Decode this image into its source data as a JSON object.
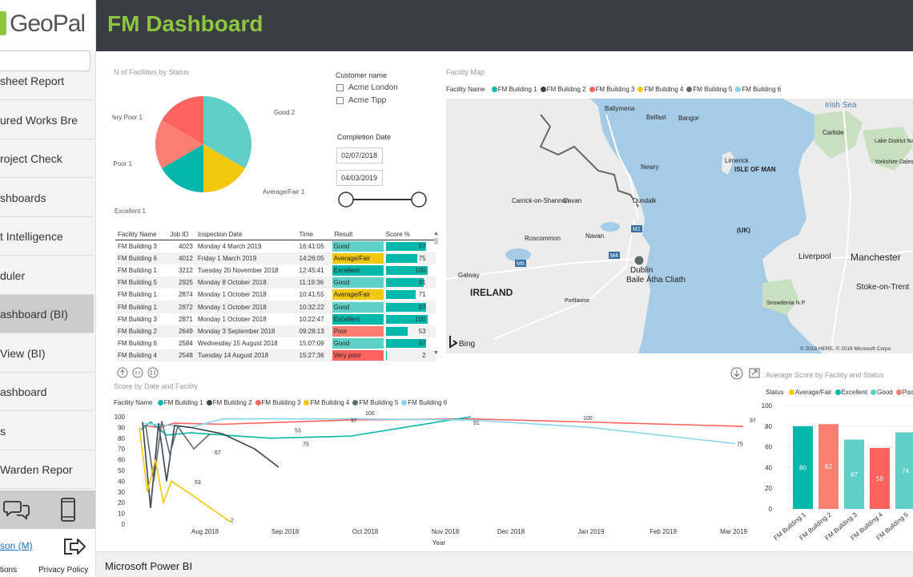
{
  "brand": {
    "name": "GeoPal",
    "accent": "#8dc63f"
  },
  "page_title": "FM Dashboard",
  "sidebar": {
    "items": [
      {
        "label": "sheet Report"
      },
      {
        "label": "ured Works Bre"
      },
      {
        "label": "roject Check"
      },
      {
        "label": "shboards"
      },
      {
        "label": "t Intelligence"
      },
      {
        "label": "duler"
      },
      {
        "label": "ashboard (BI)"
      },
      {
        "label": "View (BI)"
      },
      {
        "label": "ashboard"
      },
      {
        "label": "s"
      },
      {
        "label": "Warden Repor"
      }
    ],
    "user_link": "son (M)",
    "footer_left": "tions",
    "footer_right": "Privacy Policy"
  },
  "footer": {
    "label": "Microsoft Power BI"
  },
  "pie": {
    "title": "N of Facilities by Status",
    "slices": [
      {
        "label": "Good 2",
        "value": 2,
        "color": "#5fd0c8"
      },
      {
        "label": "Average/Fair 1",
        "value": 1,
        "color": "#f2c80f"
      },
      {
        "label": "Excellent 1",
        "value": 1,
        "color": "#01b8aa"
      },
      {
        "label": "Poor 1",
        "value": 1,
        "color": "#fd7f74"
      },
      {
        "label": "Very Poor 1",
        "value": 1,
        "color": "#fd625e"
      }
    ]
  },
  "filters": {
    "customer_label": "Customer name",
    "customers": [
      "Acme London",
      "Acme Tipp"
    ],
    "completion_label": "Completion Date",
    "date_from": "02/07/2018",
    "date_to": "04/03/2019"
  },
  "table": {
    "headers": [
      "Facility Name",
      "Job ID",
      "Inspection Date",
      "Time",
      "Result",
      "Score %"
    ],
    "rows": [
      [
        "FM Building 3",
        "4023",
        "Monday 4 March 2019",
        "16:41:05",
        "Good",
        97
      ],
      [
        "FM Building 6",
        "4012",
        "Friday 1 March 2019",
        "14:26:05",
        "Average/Fair",
        75
      ],
      [
        "FM Building 1",
        "3212",
        "Tuesday 20 November 2018",
        "12:45:41",
        "Excellent",
        100
      ],
      [
        "FM Building 5",
        "2925",
        "Monday 8 October 2018",
        "11:19:36",
        "Good",
        91
      ],
      [
        "FM Building 1",
        "2874",
        "Monday 1 October 2018",
        "10:41:55",
        "Average/Fair",
        71
      ],
      [
        "FM Building 1",
        "2872",
        "Monday 1 October 2018",
        "10:32:22",
        "Good",
        97
      ],
      [
        "FM Building 3",
        "2871",
        "Monday 1 October 2018",
        "10:22:47",
        "Excellent",
        100
      ],
      [
        "FM Building 2",
        "2649",
        "Monday 3 September 2018",
        "09:28:13",
        "Poor",
        53
      ],
      [
        "FM Building 6",
        "2584",
        "Wednesday 15 August 2018",
        "15:07:09",
        "Good",
        97
      ],
      [
        "FM Building 4",
        "2548",
        "Tuesday 14 August 2018",
        "15:27:36",
        "Very poor",
        2
      ]
    ],
    "result_colors": {
      "Good": "#5fd0c8",
      "Average/Fair": "#f2c80f",
      "Excellent": "#01b8aa",
      "Poor": "#fd7f74",
      "Very poor": "#fd625e"
    }
  },
  "map": {
    "title": "Facility Map",
    "legend_title": "Facility Name",
    "legend": [
      {
        "name": "FM Building 1",
        "color": "#01b8aa"
      },
      {
        "name": "FM Building 2",
        "color": "#374649"
      },
      {
        "name": "FM Building 3",
        "color": "#fd625e"
      },
      {
        "name": "FM Building 4",
        "color": "#f2c80f"
      },
      {
        "name": "FM Building 5",
        "color": "#5f6b6d"
      },
      {
        "name": "FM Building 6",
        "color": "#8ad4eb"
      }
    ],
    "places": [
      "Ballymena",
      "Belfast",
      "Bangor",
      "Newry",
      "Dundalk",
      "Carrick-on-Shannon",
      "Cavan",
      "Roscommon",
      "Navan",
      "Galway",
      "Dublin",
      "Baile Átha Cliath",
      "IRELAND",
      "Portlaoise",
      "Limerick",
      "ISLE OF MAN",
      "(UK)",
      "Irish Sea",
      "Carlisle",
      "Lake District National Park",
      "Yorkshire Dales N.P",
      "Liverpool",
      "Manchester",
      "Stoke-on-Trent",
      "Snowdonia N.P"
    ],
    "copyright": "© 2019 HERE, © 2019 Microsoft Corpo",
    "provider": "Bing",
    "road_labels": [
      "M1",
      "M4",
      "M6"
    ]
  },
  "line_chart": {
    "title": "Score by Date and Facility",
    "legend_title": "Facility Name",
    "xlabel": "Year",
    "x_ticks": [
      "Aug 2018",
      "Sep 2018",
      "Oct 2018",
      "Nov 2018",
      "Dec 2018",
      "Jan 2019",
      "Feb 2019",
      "Mar 2019"
    ],
    "y_ticks": [
      0,
      10,
      20,
      30,
      40,
      50,
      60,
      70,
      80,
      90,
      100
    ]
  },
  "chart_data": {
    "type": "bar",
    "title": "Average Score by Facility and Status",
    "legend_title": "Status",
    "legend": [
      {
        "name": "Average/Fair",
        "color": "#f2c80f"
      },
      {
        "name": "Excellent",
        "color": "#01b8aa"
      },
      {
        "name": "Good",
        "color": "#5fd0c8"
      },
      {
        "name": "Poor",
        "color": "#fd7f74"
      }
    ],
    "categories": [
      "FM Building 1",
      "FM Building 2",
      "FM Building 3",
      "FM Building 4",
      "FM Building 5"
    ],
    "values": [
      80,
      82,
      67,
      59,
      74
    ],
    "colors": [
      "#01b8aa",
      "#fd7f74",
      "#5fd0c8",
      "#fd625e",
      "#5fd0c8"
    ],
    "ylim": [
      0,
      100
    ],
    "y_ticks": [
      0,
      20,
      40,
      60,
      80,
      100
    ]
  }
}
